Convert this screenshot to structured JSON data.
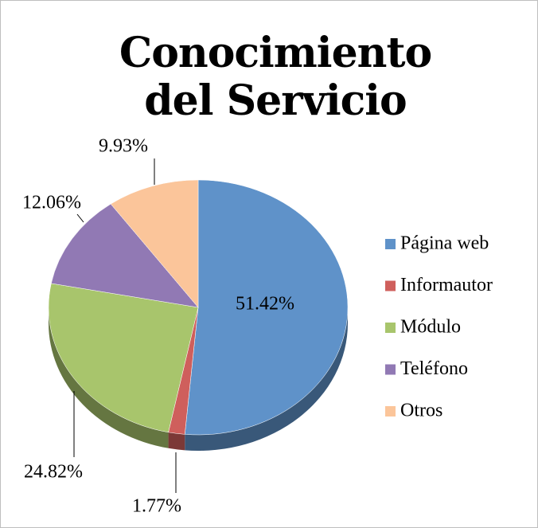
{
  "chart_data": {
    "type": "pie",
    "title": "Conocimiento del Servicio",
    "categories": [
      "Página web",
      "Informautor",
      "Módulo",
      "Teléfono",
      "Otros"
    ],
    "values": [
      51.42,
      1.77,
      24.82,
      12.06,
      9.93
    ],
    "value_labels": [
      "51.42%",
      "1.77%",
      "24.82%",
      "12.06%",
      "9.93%"
    ],
    "colors": [
      "#5f92c9",
      "#cf5f5c",
      "#a8c56c",
      "#9179b4",
      "#fbc59a"
    ],
    "legend": "right"
  }
}
